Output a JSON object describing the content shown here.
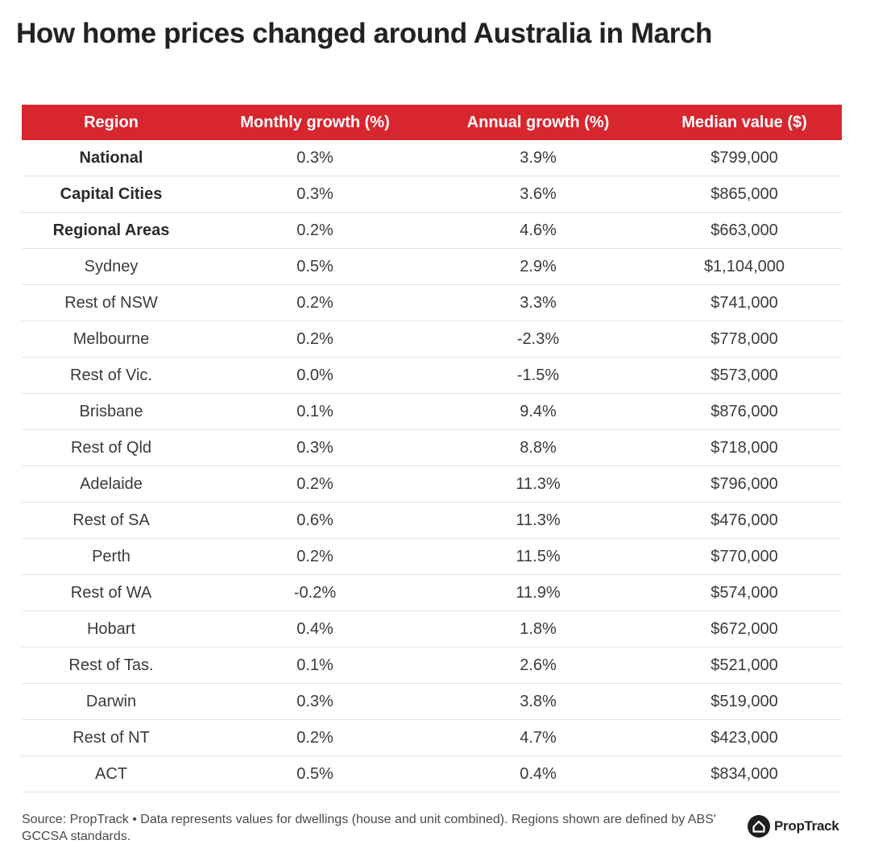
{
  "title": "How home prices changed around Australia in March",
  "colors": {
    "header_background": "#d8262f",
    "header_text": "#ffffff",
    "row_divider": "#e3e3e3",
    "text": "#3a3a3a"
  },
  "chart_data": {
    "type": "table",
    "title": "How home prices changed around Australia in March",
    "columns": [
      "Region",
      "Monthly growth (%)",
      "Annual growth (%)",
      "Median value ($)"
    ],
    "rows": [
      {
        "region": "National",
        "monthly": "0.3%",
        "annual": "3.9%",
        "median": "$799,000",
        "bold": true
      },
      {
        "region": "Capital Cities",
        "monthly": "0.3%",
        "annual": "3.6%",
        "median": "$865,000",
        "bold": true
      },
      {
        "region": "Regional Areas",
        "monthly": "0.2%",
        "annual": "4.6%",
        "median": "$663,000",
        "bold": true
      },
      {
        "region": "Sydney",
        "monthly": "0.5%",
        "annual": "2.9%",
        "median": "$1,104,000",
        "bold": false
      },
      {
        "region": "Rest of NSW",
        "monthly": "0.2%",
        "annual": "3.3%",
        "median": "$741,000",
        "bold": false
      },
      {
        "region": "Melbourne",
        "monthly": "0.2%",
        "annual": "-2.3%",
        "median": "$778,000",
        "bold": false
      },
      {
        "region": "Rest of Vic.",
        "monthly": "0.0%",
        "annual": "-1.5%",
        "median": "$573,000",
        "bold": false
      },
      {
        "region": "Brisbane",
        "monthly": "0.1%",
        "annual": "9.4%",
        "median": "$876,000",
        "bold": false
      },
      {
        "region": "Rest of Qld",
        "monthly": "0.3%",
        "annual": "8.8%",
        "median": "$718,000",
        "bold": false
      },
      {
        "region": "Adelaide",
        "monthly": "0.2%",
        "annual": "11.3%",
        "median": "$796,000",
        "bold": false
      },
      {
        "region": "Rest of SA",
        "monthly": "0.6%",
        "annual": "11.3%",
        "median": "$476,000",
        "bold": false
      },
      {
        "region": "Perth",
        "monthly": "0.2%",
        "annual": "11.5%",
        "median": "$770,000",
        "bold": false
      },
      {
        "region": "Rest of WA",
        "monthly": "-0.2%",
        "annual": "11.9%",
        "median": "$574,000",
        "bold": false
      },
      {
        "region": "Hobart",
        "monthly": "0.4%",
        "annual": "1.8%",
        "median": "$672,000",
        "bold": false
      },
      {
        "region": "Rest of Tas.",
        "monthly": "0.1%",
        "annual": "2.6%",
        "median": "$521,000",
        "bold": false
      },
      {
        "region": "Darwin",
        "monthly": "0.3%",
        "annual": "3.8%",
        "median": "$519,000",
        "bold": false
      },
      {
        "region": "Rest of NT",
        "monthly": "0.2%",
        "annual": "4.7%",
        "median": "$423,000",
        "bold": false
      },
      {
        "region": "ACT",
        "monthly": "0.5%",
        "annual": "0.4%",
        "median": "$834,000",
        "bold": false
      }
    ]
  },
  "footnote": "Source: PropTrack • Data represents values for dwellings (house and unit combined). Regions shown are defined by ABS' GCCSA standards.",
  "brand": {
    "name": "PropTrack",
    "icon": "house-logo-icon"
  }
}
